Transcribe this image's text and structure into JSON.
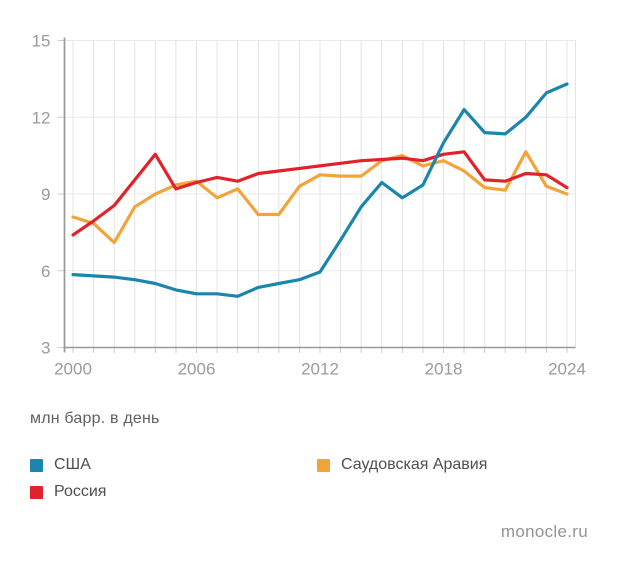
{
  "chart_data": {
    "type": "line",
    "title": "",
    "unit_label": "млн барр. в день",
    "grid": "on",
    "legend_position": "bottom",
    "x_range": [
      2000,
      2024
    ],
    "y_range": [
      3,
      15
    ],
    "x_ticks": [
      2000,
      2006,
      2012,
      2018,
      2024
    ],
    "y_ticks": [
      3,
      6,
      9,
      12,
      15
    ],
    "x": [
      2000,
      2001,
      2002,
      2003,
      2004,
      2005,
      2006,
      2007,
      2008,
      2009,
      2010,
      2011,
      2012,
      2013,
      2014,
      2015,
      2016,
      2017,
      2018,
      2019,
      2020,
      2021,
      2022,
      2023,
      2024
    ],
    "series": [
      {
        "name": "США",
        "color": "#1b86ad",
        "values": [
          5.85,
          5.8,
          5.75,
          5.65,
          5.5,
          5.25,
          5.1,
          5.1,
          5.0,
          5.35,
          5.5,
          5.65,
          5.95,
          7.2,
          8.5,
          9.45,
          8.85,
          9.35,
          11.0,
          12.3,
          11.4,
          11.35,
          12.0,
          12.95,
          13.3
        ]
      },
      {
        "name": "Россия",
        "color": "#e2222a",
        "values": [
          7.4,
          7.95,
          8.55,
          9.55,
          10.55,
          9.2,
          9.45,
          9.65,
          9.5,
          9.8,
          9.9,
          10.0,
          10.1,
          10.2,
          10.3,
          10.35,
          10.4,
          10.3,
          10.55,
          10.65,
          9.55,
          9.5,
          9.8,
          9.75,
          9.25
        ]
      },
      {
        "name": "Саудовская Аравия",
        "color": "#f2a43a",
        "values": [
          8.1,
          7.85,
          7.1,
          8.5,
          9.0,
          9.35,
          9.5,
          8.85,
          9.2,
          8.2,
          8.2,
          9.3,
          9.75,
          9.7,
          9.7,
          10.3,
          10.5,
          10.1,
          10.3,
          9.9,
          9.25,
          9.15,
          10.65,
          9.3,
          9.0
        ]
      }
    ]
  },
  "legend": {
    "items": [
      {
        "label": "США",
        "color": "#1b86ad"
      },
      {
        "label": "Россия",
        "color": "#e2222a"
      },
      {
        "label": "Саудовская Аравия",
        "color": "#f2a43a"
      }
    ]
  },
  "axis_note": "млн барр. в день",
  "footer": {
    "source": "monocle.ru"
  }
}
